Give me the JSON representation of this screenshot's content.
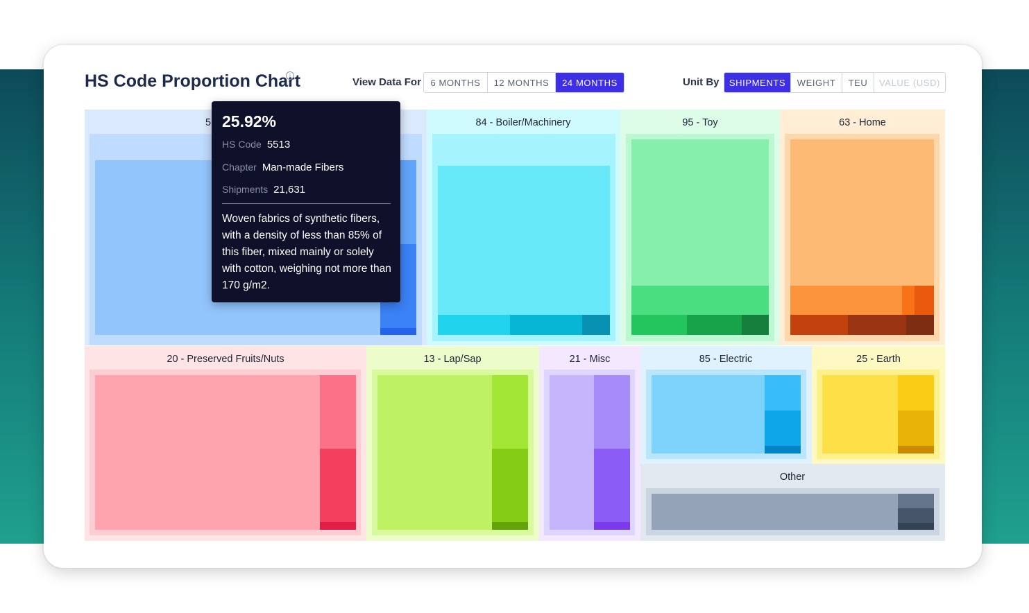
{
  "header": {
    "title": "HS Code Proportion Chart",
    "info_icon": "info-icon",
    "view_label": "View Data For",
    "periods": [
      "6 MONTHS",
      "12 MONTHS",
      "24 MONTHS"
    ],
    "period_active": "24 MONTHS",
    "unit_label": "Unit By",
    "units": [
      "SHIPMENTS",
      "WEIGHT",
      "TEU",
      "VALUE (USD)"
    ],
    "unit_active": "SHIPMENTS",
    "unit_disabled": "VALUE (USD)"
  },
  "tooltip": {
    "percent": "25.92%",
    "hs_code_label": "HS Code",
    "hs_code": "5513",
    "chapter_label": "Chapter",
    "chapter": "Man-made Fibers",
    "shipments_label": "Shipments",
    "shipments": "21,631",
    "description": "Woven fabrics of synthetic fibers, with a density of less than 85% of this fiber, mixed mainly or solely with cotton, weighing not more than 170 g/m2."
  },
  "chart_data": {
    "type": "treemap",
    "groups": [
      {
        "label": "5",
        "name": "55 - Man-made Fibers (partially hidden by tooltip)",
        "bg": "#dbe9fd",
        "colors": [
          "#bfdbfe",
          "#93c5fd",
          "#60a5fa",
          "#3b82f6",
          "#2563eb"
        ]
      },
      {
        "label": "84 - Boiler/Machinery",
        "bg": "#cffafe",
        "colors": [
          "#a5f3fc",
          "#67e8f9",
          "#22d3ee",
          "#06b6d4",
          "#0891b2"
        ]
      },
      {
        "label": "95 - Toy",
        "bg": "#dcfce7",
        "colors": [
          "#bbf7d0",
          "#86efac",
          "#4ade80",
          "#22c55e",
          "#16a34a",
          "#15803d"
        ]
      },
      {
        "label": "63 - Home",
        "bg": "#ffedd5",
        "colors": [
          "#fed7aa",
          "#fdba74",
          "#fb923c",
          "#f97316",
          "#ea580c",
          "#c2410c",
          "#9a3412",
          "#7c2d12"
        ]
      },
      {
        "label": "20 - Preserved Fruits/Nuts",
        "bg": "#ffe4e6",
        "colors": [
          "#fecdd3",
          "#fda4af",
          "#fb7185",
          "#f43f5e",
          "#e11d48"
        ]
      },
      {
        "label": "13 - Lap/Sap",
        "bg": "#ecfccb",
        "colors": [
          "#d9f99d",
          "#bef264",
          "#a3e635",
          "#84cc16",
          "#65a30d"
        ]
      },
      {
        "label": "21 - Misc",
        "bg": "#f3e8ff",
        "colors": [
          "#ddd6fe",
          "#c4b5fd",
          "#a78bfa",
          "#8b5cf6",
          "#7c3aed"
        ]
      },
      {
        "label": "85 - Electric",
        "bg": "#e0f2fe",
        "colors": [
          "#bae6fd",
          "#7dd3fc",
          "#38bdf8",
          "#0ea5e9",
          "#0284c7"
        ]
      },
      {
        "label": "25 - Earth",
        "bg": "#fef9c3",
        "colors": [
          "#fef08a",
          "#fde047",
          "#facc15",
          "#eab308",
          "#ca8a04"
        ]
      },
      {
        "label": "Other",
        "bg": "#e2e8f0",
        "colors": [
          "#cbd5e1",
          "#94a3b8",
          "#64748b",
          "#475569",
          "#334155"
        ]
      }
    ],
    "label_color": "#1c2433",
    "accent": "#3d2fe6",
    "tooltip_bg": "#0f1029"
  }
}
